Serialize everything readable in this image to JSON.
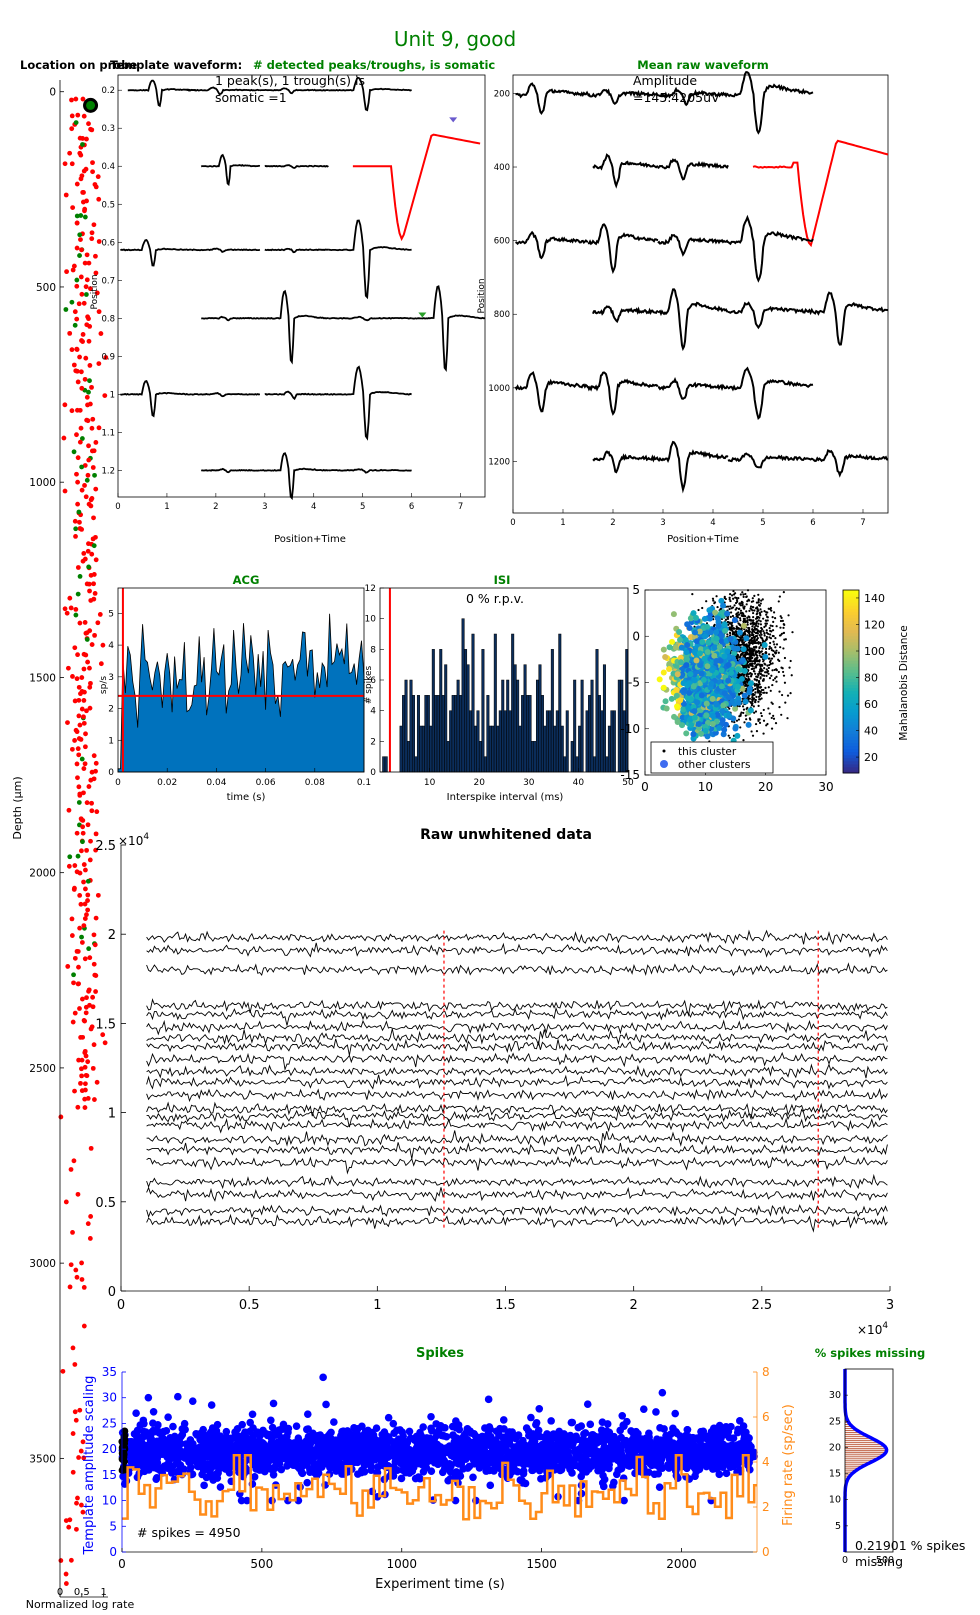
{
  "figure": {
    "title": "Unit 9, good",
    "title_color": "#008000"
  },
  "colors": {
    "green_title": "#008000",
    "blue": "#0000ff",
    "orange": "#ff8c1a",
    "red": "#ff0000",
    "acg_fill": "#0072bd",
    "black": "#000000"
  },
  "chart_data": [
    {
      "id": "probe",
      "type": "scatter",
      "title": "Location on probe",
      "ylabel": "Depth (μm)",
      "xlabel": "Normalized log rate",
      "yticks": [
        0,
        500,
        1000,
        1500,
        2000,
        2500,
        3000,
        3500
      ],
      "ylim": [
        -30,
        3855
      ],
      "xlim": [
        0,
        1.1
      ],
      "xticks": [
        "0",
        "0.5",
        "1"
      ],
      "xtick_values": [
        0,
        0.5,
        1
      ],
      "series": [
        {
          "color": "#ff0000",
          "note": "other units"
        },
        {
          "color": "#008000",
          "note": "other units green"
        },
        {
          "color": "#000000",
          "note": "this unit"
        }
      ],
      "this_unit_depth": 35
    },
    {
      "id": "template",
      "type": "line",
      "title_black": "Template waveform:",
      "title_green": "# detected peaks/troughs, is somatic",
      "annotation": [
        "1 peak(s), 1 trough(s) is",
        "somatic =1"
      ],
      "xlabel": "Position+Time",
      "ylabel": "Position",
      "xticks": [
        0,
        1,
        2,
        3,
        4,
        5,
        6,
        7
      ],
      "xlim": [
        0,
        7.5
      ],
      "yticks": [
        "0.2",
        "0.3",
        "0.4",
        "0.5",
        "0.6",
        "0.7",
        "0.8",
        "0.9",
        "1",
        "1.1",
        "1.2"
      ],
      "ytick_values": [
        0.2,
        0.3,
        0.4,
        0.5,
        0.6,
        0.7,
        0.8,
        0.9,
        1.0,
        1.1,
        1.2
      ],
      "ylim": [
        0.16,
        1.27
      ]
    },
    {
      "id": "raw_waveform",
      "type": "line",
      "title": "Mean raw waveform",
      "annotation": [
        "Amplitude",
        "=145.4205uV"
      ],
      "xlabel": "Position+Time",
      "ylabel": "Position",
      "xticks": [
        0,
        1,
        2,
        3,
        4,
        5,
        6,
        7
      ],
      "xlim": [
        0,
        7.5
      ],
      "yticks": [
        "200",
        "400",
        "600",
        "800",
        "1000",
        "1200"
      ],
      "ytick_values": [
        200,
        400,
        600,
        800,
        1000,
        1200
      ],
      "ylim": [
        150,
        1340
      ]
    },
    {
      "id": "acg",
      "type": "area",
      "title": "ACG",
      "xlabel": "time (s)",
      "ylabel": "sp/s",
      "xticks": [
        "0",
        "0.02",
        "0.04",
        "0.06",
        "0.08",
        "0.1"
      ],
      "xtick_values": [
        0,
        0.02,
        0.04,
        0.06,
        0.08,
        0.1
      ],
      "yticks": [
        0,
        1,
        2,
        3,
        4,
        5
      ],
      "xlim": [
        0,
        0.1
      ],
      "ylim": [
        0,
        5.8
      ],
      "refractory_line": 0.002,
      "mean_rate": 2.4
    },
    {
      "id": "isi",
      "type": "bar",
      "title": "ISI",
      "annotation": "0 % r.p.v.",
      "xlabel": "Interspike interval (ms)",
      "ylabel": "# spikes",
      "xticks": [
        10,
        20,
        30,
        40,
        50
      ],
      "yticks": [
        0,
        2,
        4,
        6,
        8,
        10,
        12
      ],
      "xlim": [
        0,
        50
      ],
      "ylim": [
        0,
        12
      ],
      "refractory_line": 2
    },
    {
      "id": "mahal",
      "type": "scatter",
      "xticks": [
        0,
        10,
        20,
        30
      ],
      "yticks": [
        "5",
        "0",
        "-5",
        "-10",
        "-15"
      ],
      "ytick_values": [
        5,
        0,
        -5,
        -10,
        -15
      ],
      "xlim": [
        0,
        30
      ],
      "ylim": [
        -15,
        5
      ],
      "legend": [
        "this cluster",
        "other clusters"
      ],
      "colorbar_label": "Mahalanobis Distance",
      "colorbar_ticks": [
        20,
        40,
        60,
        80,
        100,
        120,
        140
      ],
      "colorbar_range": [
        8,
        146
      ]
    },
    {
      "id": "raw_data",
      "type": "line",
      "title": "Raw unwhitened data",
      "xticks": [
        "0",
        "0.5",
        "1",
        "1.5",
        "2",
        "2.5",
        "3"
      ],
      "xtick_values": [
        0,
        0.5,
        1,
        1.5,
        2,
        2.5,
        3
      ],
      "yticks": [
        "0",
        "0.5",
        "1",
        "1.5",
        "2",
        "2.5"
      ],
      "ytick_values": [
        0,
        0.5,
        1,
        1.5,
        2,
        2.5
      ],
      "x_exponent": "×10",
      "exp": "4",
      "y_exponent": "×10",
      "xlim": [
        0,
        3
      ],
      "ylim": [
        0,
        2.5
      ],
      "spike_marks_x": [
        1.26,
        2.72
      ]
    },
    {
      "id": "spikes",
      "type": "scatter",
      "title": "Spikes",
      "xlabel": "Experiment time (s)",
      "ylabel_left": "Template amplitude scaling",
      "ylabel_right": "Firing rate (sp/sec)",
      "annotation": "# spikes = 4950",
      "xticks": [
        0,
        500,
        1000,
        1500,
        2000
      ],
      "yticks_left": [
        0,
        5,
        10,
        15,
        20,
        25,
        30,
        35
      ],
      "yticks_right": [
        0,
        2,
        4,
        6,
        8
      ],
      "xlim": [
        0,
        2270
      ],
      "ylim_left": [
        0,
        35
      ],
      "ylim_right": [
        0,
        8
      ],
      "amplitude_mean": 19.5,
      "rate_mean": 2.6
    },
    {
      "id": "missing",
      "type": "line",
      "title": "% spikes missing",
      "annotation": [
        "0.21901 % spikes",
        "missing"
      ],
      "xticks": [
        "0",
        "500"
      ],
      "xtick_values": [
        0,
        500
      ],
      "yticks": [
        5,
        10,
        15,
        20,
        25,
        30
      ],
      "xlim": [
        0,
        600
      ],
      "ylim": [
        0,
        35
      ]
    }
  ]
}
